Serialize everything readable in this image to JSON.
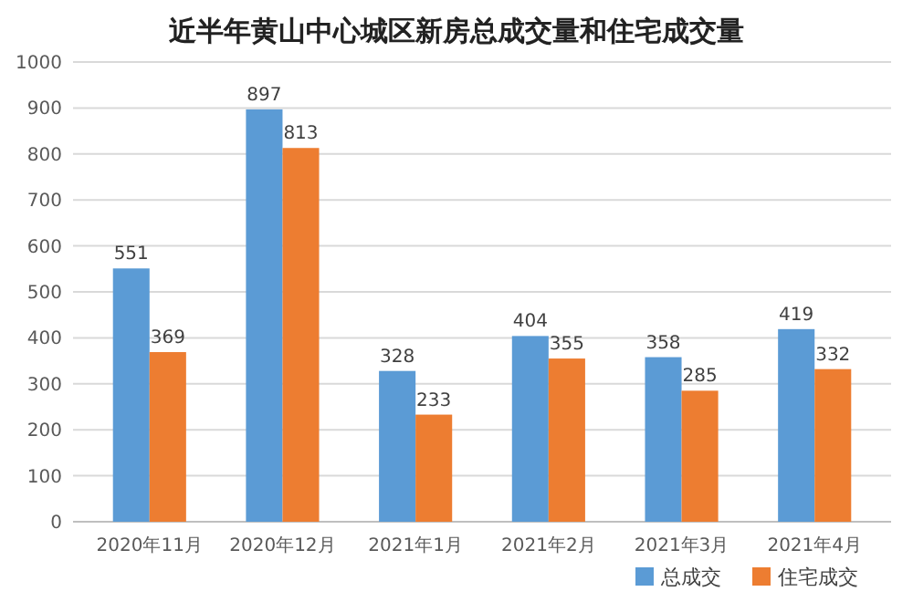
{
  "chart_data": {
    "type": "bar",
    "title": "近半年黄山中心城区新房总成交量和住宅成交量",
    "categories": [
      "2020年11月",
      "2020年12月",
      "2021年1月",
      "2021年2月",
      "2021年3月",
      "2021年4月"
    ],
    "series": [
      {
        "name": "总成交",
        "color": "#5b9bd5",
        "values": [
          551,
          897,
          328,
          404,
          358,
          419
        ]
      },
      {
        "name": "住宅成交",
        "color": "#ed7d31",
        "values": [
          369,
          813,
          233,
          355,
          285,
          332
        ]
      }
    ],
    "ylim": [
      0,
      1000
    ],
    "yticks": [
      0,
      100,
      200,
      300,
      400,
      500,
      600,
      700,
      800,
      900,
      1000
    ],
    "grid": "y",
    "legend": "bottom right",
    "data_labels": true
  }
}
